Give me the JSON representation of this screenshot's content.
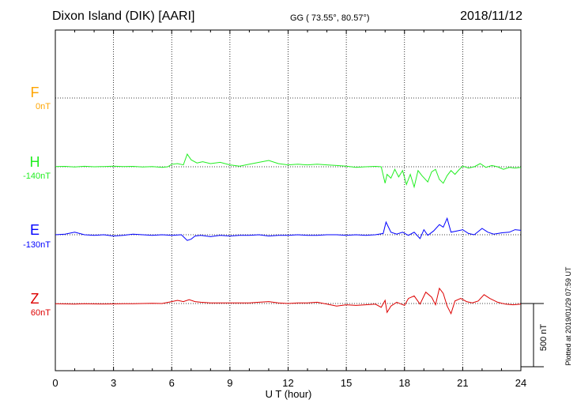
{
  "header": {
    "station": "Dixon Island (DIK)  [AARI]",
    "coords": "GG ( 73.55°,  80.57°)",
    "date": "2018/11/12"
  },
  "footer": {
    "plotted": "Plotted at 2019/01/29 07:59 UT"
  },
  "chart_data": {
    "type": "line",
    "xlabel": "U T (hour)",
    "xlim": [
      0,
      24
    ],
    "x_ticks": [
      "0",
      "3",
      "6",
      "9",
      "12",
      "15",
      "18",
      "21",
      "24"
    ],
    "scale_bar_label": "500 nT",
    "scale_bar_nT": 500,
    "grid": true,
    "colors": {
      "F": "#ffa500",
      "H": "#00ee00",
      "E": "#0000ff",
      "Z": "#ff0000"
    },
    "series": [
      {
        "name": "F",
        "baseline": "0nT",
        "color": "#ffa500",
        "values": []
      },
      {
        "name": "H",
        "baseline": "-140nT",
        "color": "#22ee22",
        "points": [
          [
            0,
            1
          ],
          [
            0.5,
            3
          ],
          [
            1,
            -2
          ],
          [
            1.5,
            4
          ],
          [
            2,
            0
          ],
          [
            2.5,
            2
          ],
          [
            3,
            5
          ],
          [
            3.5,
            1
          ],
          [
            4,
            3
          ],
          [
            4.5,
            -2
          ],
          [
            5,
            2
          ],
          [
            5.5,
            -5
          ],
          [
            5.8,
            0
          ],
          [
            6,
            20
          ],
          [
            6.3,
            25
          ],
          [
            6.6,
            15
          ],
          [
            6.8,
            100
          ],
          [
            7,
            55
          ],
          [
            7.3,
            30
          ],
          [
            7.6,
            40
          ],
          [
            8,
            25
          ],
          [
            8.5,
            35
          ],
          [
            9,
            15
          ],
          [
            9.5,
            5
          ],
          [
            10,
            20
          ],
          [
            10.5,
            35
          ],
          [
            11,
            50
          ],
          [
            11.5,
            25
          ],
          [
            12,
            15
          ],
          [
            12.5,
            20
          ],
          [
            13,
            15
          ],
          [
            13.5,
            20
          ],
          [
            14,
            15
          ],
          [
            14.5,
            10
          ],
          [
            15,
            5
          ],
          [
            15.5,
            -5
          ],
          [
            16,
            0
          ],
          [
            16.5,
            3
          ],
          [
            16.8,
            0
          ],
          [
            17,
            -130
          ],
          [
            17.1,
            -60
          ],
          [
            17.3,
            -90
          ],
          [
            17.5,
            -20
          ],
          [
            17.7,
            -80
          ],
          [
            17.9,
            -30
          ],
          [
            18.1,
            -140
          ],
          [
            18.3,
            -60
          ],
          [
            18.5,
            -160
          ],
          [
            18.7,
            -30
          ],
          [
            18.9,
            -70
          ],
          [
            19.2,
            -120
          ],
          [
            19.4,
            -40
          ],
          [
            19.6,
            -20
          ],
          [
            19.8,
            -100
          ],
          [
            20,
            -130
          ],
          [
            20.2,
            -70
          ],
          [
            20.4,
            -30
          ],
          [
            20.6,
            -60
          ],
          [
            20.8,
            -25
          ],
          [
            21,
            5
          ],
          [
            21.3,
            -10
          ],
          [
            21.6,
            0
          ],
          [
            21.9,
            25
          ],
          [
            22.2,
            -5
          ],
          [
            22.5,
            10
          ],
          [
            22.8,
            0
          ],
          [
            23.1,
            -20
          ],
          [
            23.4,
            -5
          ],
          [
            23.7,
            -10
          ],
          [
            24,
            -5
          ]
        ]
      },
      {
        "name": "E",
        "baseline": "-130nT",
        "color": "#0000ff",
        "points": [
          [
            0,
            0
          ],
          [
            0.5,
            5
          ],
          [
            1,
            20
          ],
          [
            1.5,
            0
          ],
          [
            2,
            -5
          ],
          [
            2.5,
            0
          ],
          [
            3,
            -10
          ],
          [
            3.5,
            -5
          ],
          [
            4,
            5
          ],
          [
            4.5,
            0
          ],
          [
            5,
            -5
          ],
          [
            5.5,
            0
          ],
          [
            6,
            -5
          ],
          [
            6.5,
            0
          ],
          [
            6.8,
            -45
          ],
          [
            7,
            -35
          ],
          [
            7.2,
            -10
          ],
          [
            7.5,
            -5
          ],
          [
            8,
            -15
          ],
          [
            8.5,
            -5
          ],
          [
            9,
            -10
          ],
          [
            9.5,
            -5
          ],
          [
            10,
            -5
          ],
          [
            10.5,
            0
          ],
          [
            11,
            -10
          ],
          [
            11.5,
            -5
          ],
          [
            12,
            -5
          ],
          [
            12.5,
            0
          ],
          [
            13,
            -5
          ],
          [
            13.5,
            -5
          ],
          [
            14,
            0
          ],
          [
            14.5,
            0
          ],
          [
            15,
            -5
          ],
          [
            15.5,
            0
          ],
          [
            16,
            -5
          ],
          [
            16.5,
            0
          ],
          [
            16.9,
            10
          ],
          [
            17.05,
            100
          ],
          [
            17.3,
            20
          ],
          [
            17.6,
            5
          ],
          [
            17.9,
            20
          ],
          [
            18.2,
            -5
          ],
          [
            18.5,
            20
          ],
          [
            18.8,
            -30
          ],
          [
            19,
            40
          ],
          [
            19.2,
            -5
          ],
          [
            19.5,
            30
          ],
          [
            19.8,
            80
          ],
          [
            20,
            60
          ],
          [
            20.2,
            130
          ],
          [
            20.4,
            20
          ],
          [
            20.7,
            30
          ],
          [
            21,
            40
          ],
          [
            21.3,
            10
          ],
          [
            21.6,
            0
          ],
          [
            22,
            50
          ],
          [
            22.3,
            20
          ],
          [
            22.6,
            5
          ],
          [
            23,
            15
          ],
          [
            23.4,
            20
          ],
          [
            23.7,
            40
          ],
          [
            24,
            35
          ]
        ]
      },
      {
        "name": "Z",
        "baseline": "60nT",
        "color": "#dd0000",
        "points": [
          [
            0,
            -2
          ],
          [
            0.5,
            -3
          ],
          [
            1,
            -5
          ],
          [
            1.5,
            -2
          ],
          [
            2,
            -3
          ],
          [
            2.5,
            -4
          ],
          [
            3,
            -3
          ],
          [
            3.5,
            -2
          ],
          [
            4,
            -2
          ],
          [
            4.5,
            0
          ],
          [
            5,
            2
          ],
          [
            5.5,
            0
          ],
          [
            6,
            15
          ],
          [
            6.3,
            25
          ],
          [
            6.6,
            15
          ],
          [
            6.9,
            30
          ],
          [
            7.2,
            15
          ],
          [
            7.5,
            10
          ],
          [
            8,
            5
          ],
          [
            8.5,
            5
          ],
          [
            9,
            5
          ],
          [
            9.5,
            5
          ],
          [
            10,
            5
          ],
          [
            10.5,
            10
          ],
          [
            11,
            15
          ],
          [
            11.5,
            5
          ],
          [
            12,
            0
          ],
          [
            12.5,
            5
          ],
          [
            13,
            5
          ],
          [
            13.5,
            10
          ],
          [
            14,
            -5
          ],
          [
            14.5,
            -20
          ],
          [
            15,
            -10
          ],
          [
            15.5,
            -15
          ],
          [
            16,
            -10
          ],
          [
            16.5,
            -5
          ],
          [
            16.8,
            -30
          ],
          [
            17,
            25
          ],
          [
            17.1,
            -70
          ],
          [
            17.3,
            -20
          ],
          [
            17.6,
            10
          ],
          [
            18,
            -15
          ],
          [
            18.2,
            40
          ],
          [
            18.5,
            60
          ],
          [
            18.8,
            -5
          ],
          [
            19.1,
            90
          ],
          [
            19.4,
            50
          ],
          [
            19.6,
            -10
          ],
          [
            19.8,
            120
          ],
          [
            20,
            80
          ],
          [
            20.2,
            -20
          ],
          [
            20.4,
            -80
          ],
          [
            20.6,
            20
          ],
          [
            20.9,
            40
          ],
          [
            21.2,
            15
          ],
          [
            21.5,
            5
          ],
          [
            21.8,
            20
          ],
          [
            22.1,
            70
          ],
          [
            22.4,
            40
          ],
          [
            22.8,
            10
          ],
          [
            23.2,
            -5
          ],
          [
            23.6,
            -10
          ],
          [
            24,
            -5
          ]
        ]
      }
    ]
  }
}
